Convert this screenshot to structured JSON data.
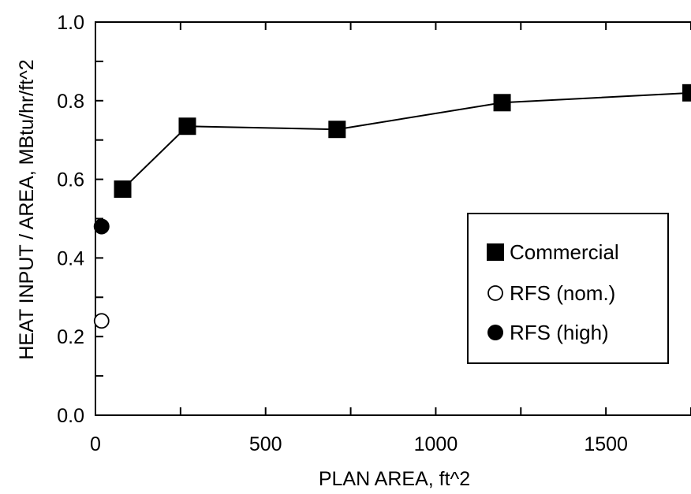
{
  "chart_data": {
    "type": "scatter",
    "xlabel": "PLAN AREA, ft^2",
    "ylabel": "HEAT INPUT / AREA, MBtu/hr/ft^2",
    "xlim": [
      0,
      1750
    ],
    "ylim": [
      0.0,
      1.0
    ],
    "x_ticks": [
      0,
      500,
      1000,
      1500
    ],
    "x_tick_labels": [
      "0",
      "500",
      "1000",
      "1500"
    ],
    "y_ticks": [
      0.0,
      0.2,
      0.4,
      0.6,
      0.8,
      1.0
    ],
    "y_tick_labels": [
      "0.0",
      "0.2",
      "0.4",
      "0.6",
      "0.8",
      "1.0"
    ],
    "grid": false,
    "legend_position": "right",
    "series": [
      {
        "name": "Commercial",
        "marker": "filled-square",
        "connected": true,
        "color": "#000000",
        "points": [
          {
            "x": 80,
            "y": 0.575
          },
          {
            "x": 270,
            "y": 0.735
          },
          {
            "x": 710,
            "y": 0.727
          },
          {
            "x": 1195,
            "y": 0.795
          },
          {
            "x": 1750,
            "y": 0.82
          }
        ]
      },
      {
        "name": "RFS (nom.)",
        "marker": "open-circle",
        "connected": false,
        "color": "#000000",
        "points": [
          {
            "x": 18,
            "y": 0.24
          }
        ]
      },
      {
        "name": "RFS (high)",
        "marker": "filled-circle",
        "connected": false,
        "color": "#000000",
        "points": [
          {
            "x": 18,
            "y": 0.48
          }
        ]
      }
    ]
  }
}
